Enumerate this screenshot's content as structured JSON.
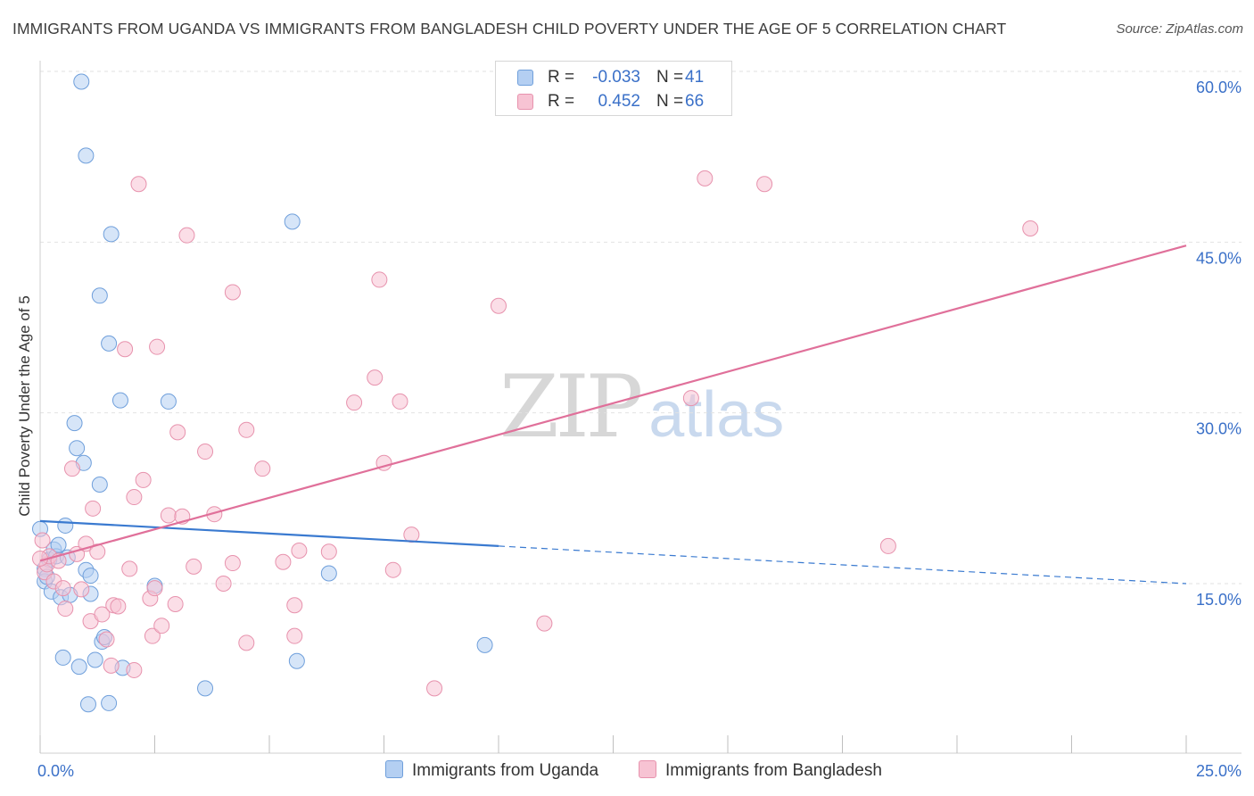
{
  "title": "IMMIGRANTS FROM UGANDA VS IMMIGRANTS FROM BANGLADESH CHILD POVERTY UNDER THE AGE OF 5 CORRELATION CHART",
  "source": "Source: ZipAtlas.com",
  "watermark": {
    "zip": "ZIP",
    "atlas": "atlas"
  },
  "legend_top": {
    "rows": [
      {
        "r_label": "R =",
        "r_value": "-0.033",
        "n_label": "N =",
        "n_value": "41"
      },
      {
        "r_label": "R =",
        "r_value": "0.452",
        "n_label": "N =",
        "n_value": "66"
      }
    ]
  },
  "legend_bottom": [
    "Immigrants from Uganda",
    "Immigrants from Bangladesh"
  ],
  "colors": {
    "uganda_fill": "#b4cff2",
    "uganda_stroke": "#6f9fdb",
    "uganda_line": "#3a7ad0",
    "bangladesh_fill": "#f7c3d3",
    "bangladesh_stroke": "#e792ad",
    "bangladesh_line": "#e0709a",
    "tick_label": "#3a70c8",
    "grid": "#e2e2e2"
  },
  "chart_data": {
    "type": "scatter",
    "title": "IMMIGRANTS FROM UGANDA VS IMMIGRANTS FROM BANGLADESH CHILD POVERTY UNDER THE AGE OF 5 CORRELATION CHART",
    "xlabel": "",
    "ylabel": "Child Poverty Under the Age of 5",
    "xlim": [
      0,
      25
    ],
    "ylim": [
      0,
      62
    ],
    "x_tick_labels": [
      {
        "value": 0,
        "label": "0.0%"
      },
      {
        "value": 25,
        "label": "25.0%"
      }
    ],
    "x_minor_ticks": [
      0,
      2.5,
      5,
      7.5,
      10,
      12.5,
      15,
      17.5,
      20,
      22.5,
      25
    ],
    "y_ticks": [
      {
        "value": 15,
        "label": "15.0%"
      },
      {
        "value": 30,
        "label": "30.0%"
      },
      {
        "value": 45,
        "label": "45.0%"
      },
      {
        "value": 60,
        "label": "60.0%"
      }
    ],
    "grid": true,
    "legend_position": "bottom",
    "series": [
      {
        "name": "Immigrants from Uganda",
        "r": -0.033,
        "n": 41,
        "trend": {
          "x0": 0,
          "y0": 20.5,
          "x1": 10,
          "y1": 18.3,
          "dashed_to_x": 25,
          "dashed_to_y": 15.0
        },
        "points": [
          [
            0.0,
            19.8
          ],
          [
            0.1,
            16.3
          ],
          [
            0.1,
            15.2
          ],
          [
            0.15,
            15.6
          ],
          [
            0.2,
            17.1
          ],
          [
            0.25,
            14.3
          ],
          [
            0.3,
            18.0
          ],
          [
            0.35,
            17.4
          ],
          [
            0.4,
            18.4
          ],
          [
            0.45,
            13.8
          ],
          [
            0.5,
            8.5
          ],
          [
            0.55,
            20.1
          ],
          [
            0.6,
            17.3
          ],
          [
            0.65,
            14.0
          ],
          [
            0.75,
            29.1
          ],
          [
            0.8,
            26.9
          ],
          [
            0.85,
            7.7
          ],
          [
            0.9,
            59.1
          ],
          [
            0.95,
            25.6
          ],
          [
            1.0,
            16.2
          ],
          [
            1.0,
            52.6
          ],
          [
            1.05,
            4.4
          ],
          [
            1.1,
            14.1
          ],
          [
            1.1,
            15.7
          ],
          [
            1.2,
            8.3
          ],
          [
            1.3,
            40.3
          ],
          [
            1.3,
            23.7
          ],
          [
            1.35,
            9.9
          ],
          [
            1.4,
            10.3
          ],
          [
            1.5,
            36.1
          ],
          [
            1.5,
            4.5
          ],
          [
            1.55,
            45.7
          ],
          [
            1.75,
            31.1
          ],
          [
            1.8,
            7.6
          ],
          [
            2.5,
            14.8
          ],
          [
            2.8,
            31.0
          ],
          [
            3.6,
            5.8
          ],
          [
            5.5,
            46.8
          ],
          [
            5.6,
            8.2
          ],
          [
            6.3,
            15.9
          ],
          [
            9.7,
            9.6
          ]
        ]
      },
      {
        "name": "Immigrants from Bangladesh",
        "r": 0.452,
        "n": 66,
        "trend": {
          "x0": 0,
          "y0": 17.0,
          "x1": 25,
          "y1": 44.7
        },
        "points": [
          [
            0.05,
            18.8
          ],
          [
            0.1,
            16.0
          ],
          [
            0.15,
            16.7
          ],
          [
            0.2,
            17.4
          ],
          [
            0.3,
            15.2
          ],
          [
            0.4,
            17.0
          ],
          [
            0.5,
            14.6
          ],
          [
            0.55,
            12.8
          ],
          [
            0.7,
            25.1
          ],
          [
            0.8,
            17.6
          ],
          [
            0.9,
            14.5
          ],
          [
            1.0,
            18.5
          ],
          [
            1.1,
            11.7
          ],
          [
            1.15,
            21.6
          ],
          [
            1.25,
            17.8
          ],
          [
            1.35,
            12.3
          ],
          [
            1.45,
            10.1
          ],
          [
            1.55,
            7.8
          ],
          [
            1.6,
            13.1
          ],
          [
            1.7,
            13.0
          ],
          [
            1.85,
            35.6
          ],
          [
            1.95,
            16.3
          ],
          [
            2.05,
            22.6
          ],
          [
            2.05,
            7.4
          ],
          [
            2.15,
            50.1
          ],
          [
            2.25,
            24.1
          ],
          [
            2.4,
            13.7
          ],
          [
            2.45,
            10.4
          ],
          [
            2.5,
            14.6
          ],
          [
            2.55,
            35.8
          ],
          [
            2.65,
            11.3
          ],
          [
            2.8,
            21.0
          ],
          [
            2.95,
            13.2
          ],
          [
            3.0,
            28.3
          ],
          [
            3.1,
            20.9
          ],
          [
            3.2,
            45.6
          ],
          [
            3.35,
            16.5
          ],
          [
            3.6,
            26.6
          ],
          [
            3.8,
            21.1
          ],
          [
            4.0,
            15.0
          ],
          [
            4.2,
            40.6
          ],
          [
            4.2,
            16.8
          ],
          [
            4.5,
            9.8
          ],
          [
            4.5,
            28.5
          ],
          [
            4.85,
            25.1
          ],
          [
            5.3,
            16.9
          ],
          [
            5.55,
            13.1
          ],
          [
            5.55,
            10.4
          ],
          [
            5.65,
            17.9
          ],
          [
            6.3,
            17.8
          ],
          [
            6.85,
            30.9
          ],
          [
            7.3,
            33.1
          ],
          [
            7.4,
            41.7
          ],
          [
            7.5,
            25.6
          ],
          [
            7.7,
            16.2
          ],
          [
            7.85,
            31.0
          ],
          [
            8.1,
            19.3
          ],
          [
            8.6,
            5.8
          ],
          [
            10.0,
            39.4
          ],
          [
            11.0,
            11.5
          ],
          [
            14.2,
            31.3
          ],
          [
            14.5,
            50.6
          ],
          [
            15.8,
            50.1
          ],
          [
            18.5,
            18.3
          ],
          [
            21.6,
            46.2
          ],
          [
            0.0,
            17.2
          ]
        ]
      }
    ]
  }
}
